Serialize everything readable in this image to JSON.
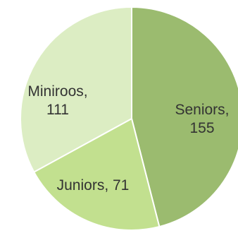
{
  "chart_data": {
    "type": "pie",
    "title": "",
    "slices": [
      {
        "label": "Seniors",
        "value": 155,
        "color": "#9bbb6f",
        "label_lines": [
          "Seniors,",
          "155"
        ]
      },
      {
        "label": "Juniors",
        "value": 71,
        "color": "#c2e08f",
        "label_lines": [
          "Juniors, 71"
        ]
      },
      {
        "label": "Miniroos",
        "value": 111,
        "color": "#dcedc3",
        "label_lines": [
          "Miniroos,",
          "111"
        ]
      }
    ],
    "legend": "none",
    "data_labels": "category, value"
  }
}
